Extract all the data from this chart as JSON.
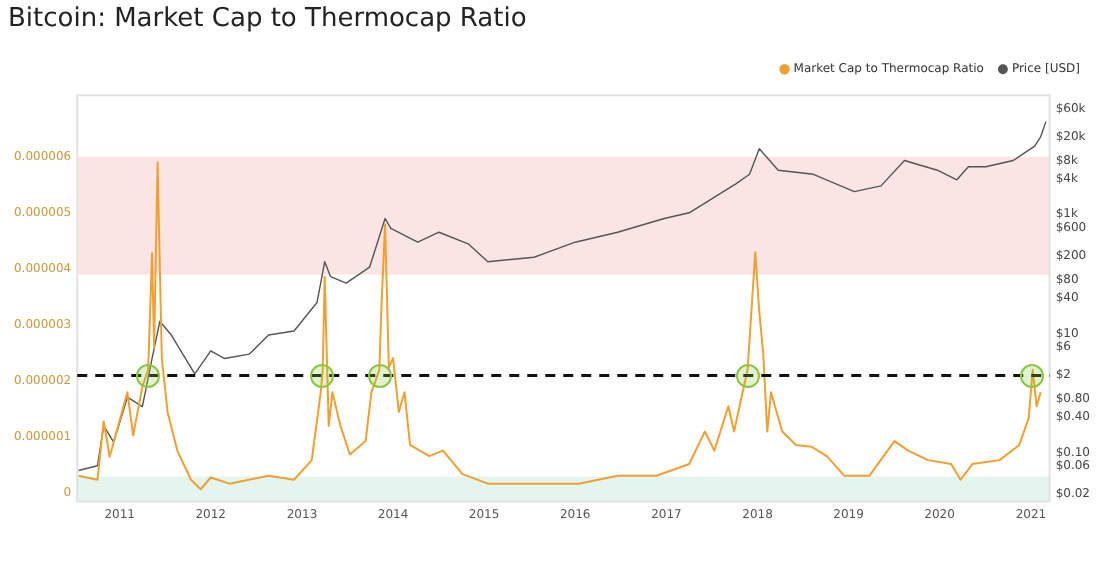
{
  "chart_data": {
    "type": "line",
    "title": "Bitcoin: Market Cap to Thermocap Ratio",
    "legend": "top right",
    "marker": "none",
    "log": "y2",
    "xlim": [
      "2010-07-15",
      "2021-03-17"
    ],
    "xticks": [
      "2011",
      "2012",
      "2013",
      "2014",
      "2015",
      "2016",
      "2017",
      "2018",
      "2019",
      "2020",
      "2021"
    ],
    "ylim": [
      -1.5e-07,
      7.1e-06
    ],
    "yticks": [
      0,
      {
        "value": 1e-06,
        "label": "0.000001"
      },
      {
        "value": 2e-06,
        "label": "0.000002"
      },
      {
        "value": 3e-06,
        "label": "0.000003"
      },
      {
        "value": 4e-06,
        "label": "0.000004"
      },
      {
        "value": 5e-06,
        "label": "0.000005"
      },
      {
        "value": 6e-06,
        "label": "0.000006"
      }
    ],
    "y2lim": [
      0.015,
      100000
    ],
    "y2ticks": [
      {
        "value": 0.02,
        "label": "$0.02"
      },
      {
        "value": 0.06,
        "label": "$0.06"
      },
      {
        "value": 0.1,
        "label": "$0.10"
      },
      {
        "value": 0.4,
        "label": "$0.40"
      },
      {
        "value": 0.8,
        "label": "$0.80"
      },
      {
        "value": 2,
        "label": "$2"
      },
      {
        "value": 6,
        "label": "$6"
      },
      {
        "value": 10,
        "label": "$10"
      },
      {
        "value": 40,
        "label": "$40"
      },
      {
        "value": 80,
        "label": "$80"
      },
      {
        "value": 200,
        "label": "$200"
      },
      {
        "value": 600,
        "label": "$600"
      },
      {
        "value": 1000,
        "label": "$1k"
      },
      {
        "value": 4000,
        "label": "$4k"
      },
      {
        "value": 8000,
        "label": "$8k"
      },
      {
        "value": 20000,
        "label": "$20k"
      },
      {
        "value": 60000,
        "label": "$60k"
      }
    ],
    "bands": [
      {
        "axis": "y",
        "from": 3.9e-06,
        "to": 6e-06,
        "color": "#fbe4e4"
      },
      {
        "axis": "y",
        "from": -1.5e-07,
        "to": 3e-07,
        "color": "#e4f5ef"
      }
    ],
    "ref_lines": [
      {
        "axis": "y",
        "value": 2.1e-06,
        "color": "#111111",
        "line_style": "dashed"
      }
    ],
    "series": [
      {
        "name": "Market Cap to Thermocap Ratio",
        "color": "#f0a030",
        "x": [
          "2010-07-20",
          "2010-10-04",
          "2010-10-29",
          "2010-11-22",
          "2011-02-01",
          "2011-02-24",
          "2011-04-02",
          "2011-04-25",
          "2011-05-11",
          "2011-05-19",
          "2011-06-02",
          "2011-06-19",
          "2011-07-12",
          "2011-08-20",
          "2011-10-14",
          "2011-11-22",
          "2012-01-01",
          "2012-03-17",
          "2012-08-20",
          "2012-11-30",
          "2013-02-09",
          "2013-03-17",
          "2013-03-25",
          "2013-04-02",
          "2013-04-18",
          "2013-05-03",
          "2013-06-04",
          "2013-07-12",
          "2013-09-13",
          "2013-10-06",
          "2013-11-07",
          "2013-11-15",
          "2013-11-30",
          "2013-12-15",
          "2014-01-01",
          "2014-01-24",
          "2014-02-16",
          "2014-03-10",
          "2014-05-26",
          "2014-07-20",
          "2014-10-06",
          "2015-01-16",
          "2015-10-29",
          "2016-01-16",
          "2016-06-19",
          "2016-11-22",
          "2017-04-02",
          "2017-06-04",
          "2017-07-12",
          "2017-09-06",
          "2017-09-29",
          "2017-11-07",
          "2017-11-22",
          "2017-12-23",
          "2018-01-08",
          "2018-01-24",
          "2018-02-09",
          "2018-02-24",
          "2018-04-10",
          "2018-06-04",
          "2018-08-05",
          "2018-10-06",
          "2018-12-15",
          "2019-03-25",
          "2019-07-04",
          "2019-08-28",
          "2019-11-15",
          "2020-02-16",
          "2020-03-25",
          "2020-05-11",
          "2020-08-28",
          "2020-11-15",
          "2020-12-23",
          "2021-01-08",
          "2021-01-24",
          "2021-02-09"
        ],
        "values": [
          3.1e-07,
          2.4e-07,
          1.28e-06,
          6.5e-07,
          1.8e-06,
          1.03e-06,
          1.9e-06,
          2.2e-06,
          4.28e-06,
          2.6e-06,
          5.9e-06,
          2.4e-06,
          1.45e-06,
          7.6e-07,
          2.4e-07,
          7e-08,
          2.8e-07,
          1.7e-07,
          3.1e-07,
          2.4e-07,
          5.9e-07,
          1.8e-06,
          2.2e-06,
          3.86e-06,
          1.2e-06,
          1.8e-06,
          1.2e-06,
          6.9e-07,
          9.3e-07,
          1.8e-06,
          2.2e-06,
          3.28e-06,
          4.8e-06,
          2.24e-06,
          2.41e-06,
          1.45e-06,
          1.8e-06,
          8.6e-07,
          6.6e-07,
          7.6e-07,
          3.4e-07,
          1.7e-07,
          1.7e-07,
          1.7e-07,
          3.1e-07,
          3.1e-07,
          5.2e-07,
          1.1e-06,
          7.6e-07,
          1.55e-06,
          1.1e-06,
          1.9e-06,
          2.2e-06,
          4.3e-06,
          3.24e-06,
          2.48e-06,
          1.1e-06,
          1.8e-06,
          1.1e-06,
          8.6e-07,
          8.3e-07,
          6.6e-07,
          3.1e-07,
          3.1e-07,
          9.3e-07,
          7.6e-07,
          5.9e-07,
          5.2e-07,
          2.4e-07,
          5.2e-07,
          5.9e-07,
          8.6e-07,
          1.34e-06,
          2.2e-06,
          1.55e-06,
          1.8e-06
        ]
      },
      {
        "name": "Price [USD]",
        "color": "#555555",
        "axis": "y2",
        "x": [
          "2010-07-20",
          "2010-10-04",
          "2010-10-29",
          "2010-12-08",
          "2011-02-01",
          "2011-04-02",
          "2011-05-11",
          "2011-06-11",
          "2011-07-27",
          "2011-10-29",
          "2012-01-01",
          "2012-02-24",
          "2012-06-04",
          "2012-08-20",
          "2012-11-30",
          "2013-03-02",
          "2013-04-02",
          "2013-04-25",
          "2013-06-27",
          "2013-09-29",
          "2013-11-30",
          "2013-12-23",
          "2014-04-10",
          "2014-07-04",
          "2014-10-29",
          "2015-01-16",
          "2015-07-20",
          "2016-01-01",
          "2016-06-19",
          "2016-12-23",
          "2017-04-02",
          "2017-10-06",
          "2017-11-30",
          "2018-01-08",
          "2018-03-25",
          "2018-08-13",
          "2019-01-24",
          "2019-05-11",
          "2019-08-13",
          "2019-12-23",
          "2020-03-10",
          "2020-04-25",
          "2020-07-04",
          "2020-10-22",
          "2021-01-16",
          "2021-02-09",
          "2021-03-02"
        ],
        "values": [
          0.05,
          0.06,
          0.28,
          0.15,
          0.85,
          0.59,
          3.8,
          16,
          9.4,
          2.1,
          5.1,
          3.8,
          4.5,
          9.4,
          11,
          33,
          160,
          90,
          70,
          130,
          850,
          580,
          340,
          500,
          320,
          160,
          190,
          340,
          500,
          850,
          1060,
          3250,
          4700,
          12600,
          5500,
          4700,
          2400,
          3000,
          8000,
          5500,
          3800,
          6300,
          6300,
          8000,
          14000,
          20000,
          36000
        ]
      }
    ]
  }
}
